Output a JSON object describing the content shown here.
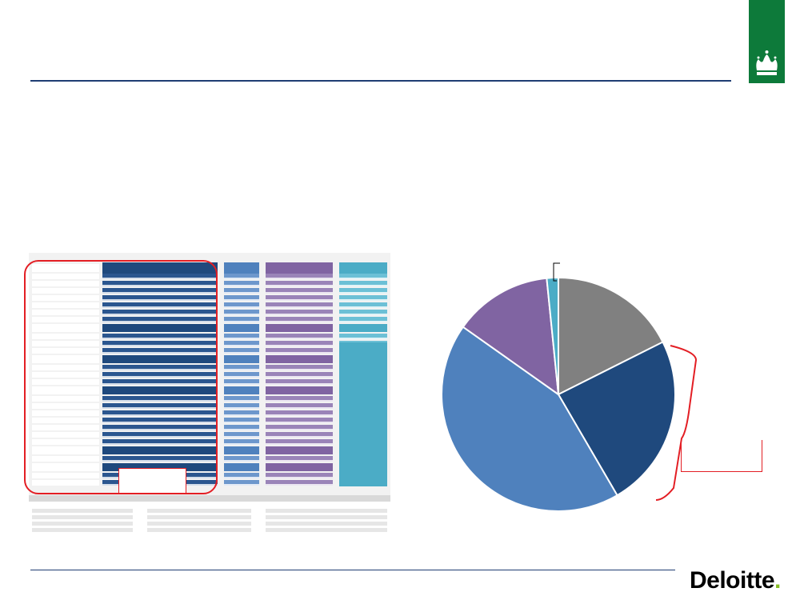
{
  "branding": {
    "company": "Deloitte",
    "company_dot": ".",
    "crest": "crown-icon",
    "colors": {
      "rule": "#1f3d73",
      "crest_bg": "#0d7a3a",
      "deloitte_green": "#86bc25",
      "highlight": "#e31e24"
    }
  },
  "table": {
    "column_colors": [
      "#ffffff",
      "#1f497d",
      "#4f81bd",
      "#8064a2",
      "#4bacc6"
    ]
  },
  "chart_data": {
    "type": "pie",
    "title": "",
    "slices": [
      {
        "value": 17.6,
        "color": "#808080"
      },
      {
        "value": 24.0,
        "color": "#1f497d"
      },
      {
        "value": 43.2,
        "color": "#4f81bd"
      },
      {
        "value": 13.6,
        "color": "#8064a2"
      },
      {
        "value": 1.6,
        "color": "#4bacc6"
      }
    ]
  }
}
